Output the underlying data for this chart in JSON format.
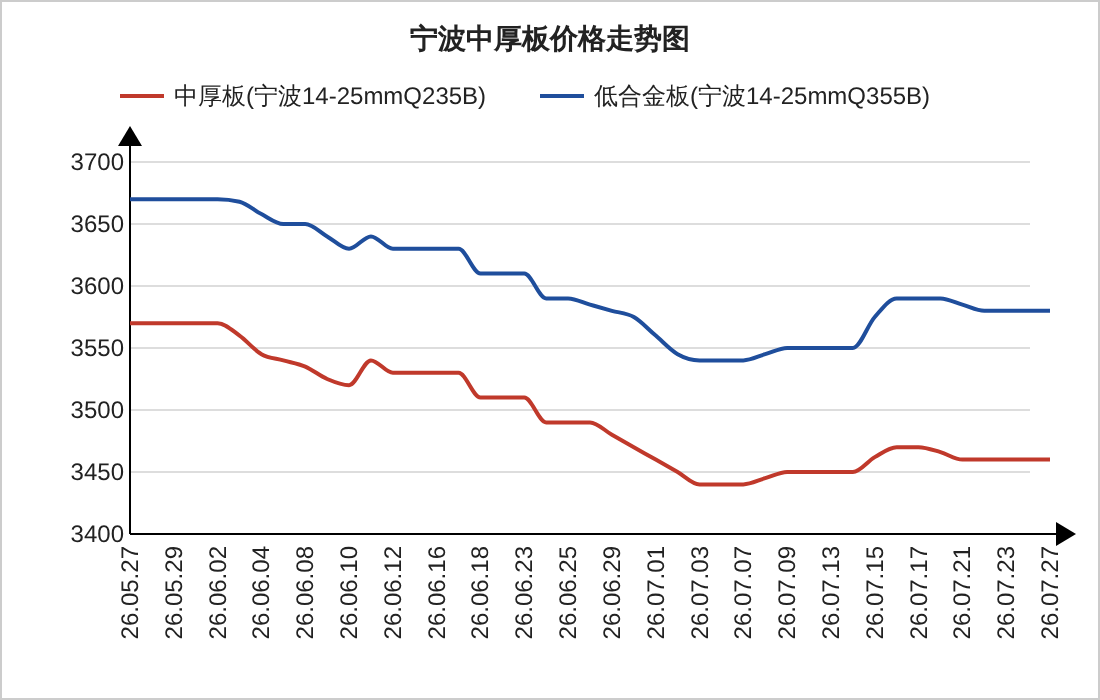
{
  "chart_data": {
    "type": "line",
    "title": "宁波中厚板价格走势图",
    "categories": [
      "26.05.27",
      null,
      "26.05.29",
      null,
      "26.06.02",
      null,
      "26.06.04",
      null,
      "26.06.08",
      null,
      "26.06.10",
      null,
      "26.06.12",
      null,
      "26.06.16",
      null,
      "26.06.18",
      null,
      "26.06.23",
      null,
      "26.06.25",
      null,
      "26.06.29",
      null,
      "26.07.01",
      null,
      "26.07.03",
      null,
      "26.07.07",
      null,
      "26.07.09",
      null,
      "26.07.13",
      null,
      "26.07.15",
      null,
      "26.07.17",
      null,
      "26.07.21",
      null,
      "26.07.23",
      null,
      "26.07.27"
    ],
    "series": [
      {
        "name": "中厚板(宁波14-25mmQ235B)",
        "color": "#c0392b",
        "values": [
          3570,
          3570,
          3570,
          3570,
          3570,
          3560,
          3545,
          3540,
          3535,
          3525,
          3520,
          3540,
          3530,
          3530,
          3530,
          3530,
          3510,
          3510,
          3510,
          3490,
          3490,
          3490,
          3480,
          3470,
          3460,
          3450,
          3440,
          3440,
          3440,
          3445,
          3450,
          3450,
          3450,
          3450,
          3462,
          3470,
          3470,
          3466,
          3460,
          3460,
          3460,
          3460,
          3460
        ]
      },
      {
        "name": "低合金板(宁波14-25mmQ355B)",
        "color": "#1f4e9c",
        "values": [
          3670,
          3670,
          3670,
          3670,
          3670,
          3668,
          3658,
          3650,
          3650,
          3640,
          3630,
          3640,
          3630,
          3630,
          3630,
          3630,
          3610,
          3610,
          3610,
          3590,
          3590,
          3585,
          3580,
          3575,
          3560,
          3545,
          3540,
          3540,
          3540,
          3545,
          3550,
          3550,
          3550,
          3550,
          3575,
          3590,
          3590,
          3590,
          3585,
          3580,
          3580,
          3580,
          3580
        ]
      }
    ],
    "ylim": [
      3400,
      3700
    ],
    "yticks": [
      3400,
      3450,
      3500,
      3550,
      3600,
      3650,
      3700
    ],
    "grid": "y",
    "legend": "top",
    "line_style": "solid",
    "marker": "none"
  }
}
